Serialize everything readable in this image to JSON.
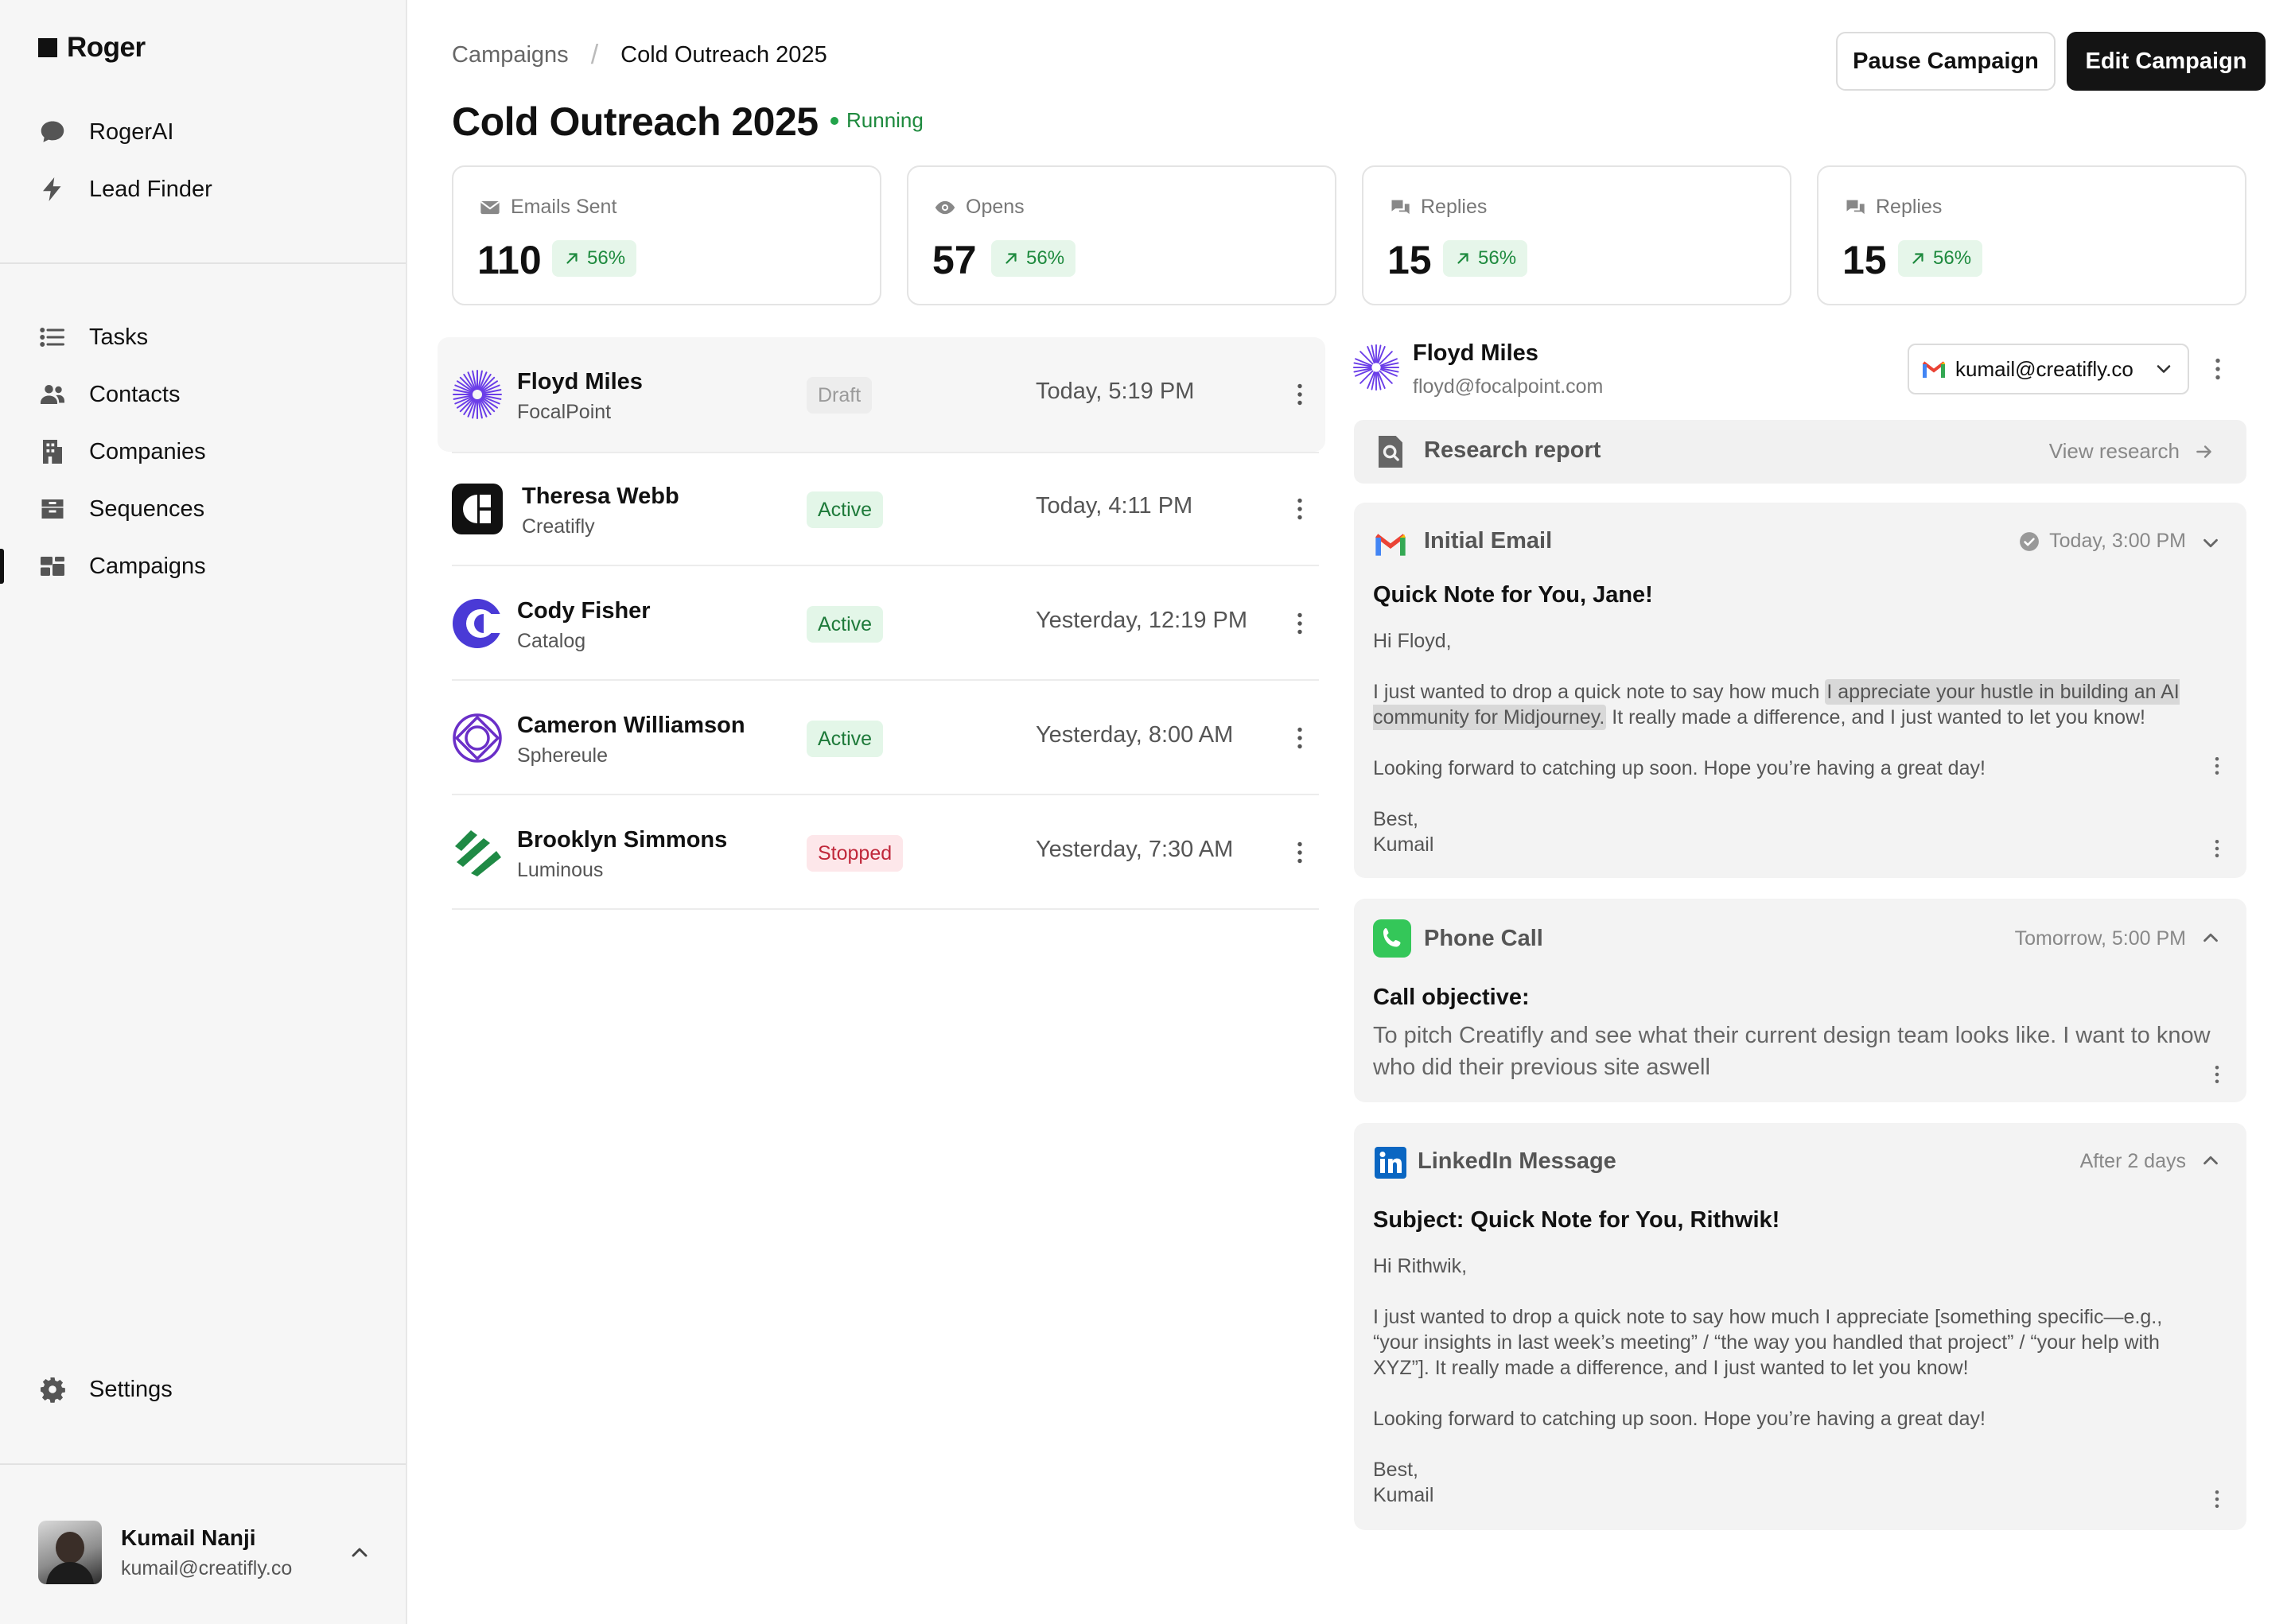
{
  "app": {
    "name": "Roger"
  },
  "sidebar": {
    "top_items": [
      {
        "label": "RogerAI",
        "icon": "chat-bubble-icon"
      },
      {
        "label": "Lead Finder",
        "icon": "lightning-icon"
      }
    ],
    "main_items": [
      {
        "label": "Tasks",
        "icon": "list-icon"
      },
      {
        "label": "Contacts",
        "icon": "users-icon"
      },
      {
        "label": "Companies",
        "icon": "building-icon"
      },
      {
        "label": "Sequences",
        "icon": "inbox-icon"
      },
      {
        "label": "Campaigns",
        "icon": "campaigns-icon",
        "active": true
      }
    ],
    "settings_label": "Settings",
    "user": {
      "name": "Kumail Nanji",
      "email": "kumail@creatifly.co"
    }
  },
  "breadcrumb": {
    "parent": "Campaigns",
    "current": "Cold Outreach 2025"
  },
  "page": {
    "title": "Cold Outreach 2025",
    "status": "Running"
  },
  "actions": {
    "pause": "Pause Campaign",
    "edit": "Edit Campaign"
  },
  "stats": [
    {
      "label": "Emails Sent",
      "value": "110",
      "change": "56%",
      "icon": "envelope-icon"
    },
    {
      "label": "Opens",
      "value": "57",
      "change": "56%",
      "icon": "eye-icon"
    },
    {
      "label": "Replies",
      "value": "15",
      "change": "56%",
      "icon": "reply-icon"
    },
    {
      "label": "Replies",
      "value": "15",
      "change": "56%",
      "icon": "reply-icon"
    }
  ],
  "contacts": [
    {
      "name": "Floyd Miles",
      "company": "FocalPoint",
      "status": "Draft",
      "time": "Today, 5:19 PM"
    },
    {
      "name": "Theresa Webb",
      "company": "Creatifly",
      "status": "Active",
      "time": "Today, 4:11 PM"
    },
    {
      "name": "Cody Fisher",
      "company": "Catalog",
      "status": "Active",
      "time": "Yesterday, 12:19 PM"
    },
    {
      "name": "Cameron Williamson",
      "company": "Sphereule",
      "status": "Active",
      "time": "Yesterday, 8:00 AM"
    },
    {
      "name": "Brooklyn Simmons",
      "company": "Luminous",
      "status": "Stopped",
      "time": "Yesterday, 7:30 AM"
    }
  ],
  "detail": {
    "name": "Floyd Miles",
    "email": "floyd@focalpoint.com",
    "sender": "kumail@creatifly.co",
    "research": {
      "title": "Research report",
      "link": "View research"
    },
    "initial_email": {
      "title": "Initial Email",
      "time": "Today, 3:00 PM",
      "subject": "Quick Note for You, Jane!",
      "greeting": "Hi Floyd,",
      "body_pre": "I just wanted to drop a quick note to say how much ",
      "body_highlight": "I appreciate your hustle in building an AI community for Midjourney.",
      "body_post": " It really made a difference, and I just wanted to let you know!",
      "closing_line": "Looking forward to catching up soon. Hope you’re having a great day!",
      "signoff": "Best,",
      "signature": "Kumail"
    },
    "phone_call": {
      "title": "Phone Call",
      "time": "Tomorrow, 5:00 PM",
      "objective_label": "Call objective:",
      "objective": "To pitch Creatifly and see what their current design team looks like. I want to know who did their previous site aswell"
    },
    "linkedin": {
      "title": "LinkedIn Message",
      "time": "After 2 days",
      "subject": "Subject: Quick Note for You, Rithwik!",
      "greeting": "Hi Rithwik,",
      "body": "I just wanted to drop a quick note to say how much I appreciate [something specific—e.g., “your insights in last week’s meeting” / “the way you handled that project” / “your help with XYZ”]. It really made a difference, and I just wanted to let you know!",
      "closing_line": "Looking forward to catching up soon. Hope you’re having a great day!",
      "signoff": "Best,",
      "signature": "Kumail"
    }
  },
  "colors": {
    "accent_dark": "#141414",
    "running": "#1e8a3e",
    "active_badge": "#e3f6e8",
    "stopped_badge": "#fde7ea",
    "draft_badge": "#ededed"
  }
}
